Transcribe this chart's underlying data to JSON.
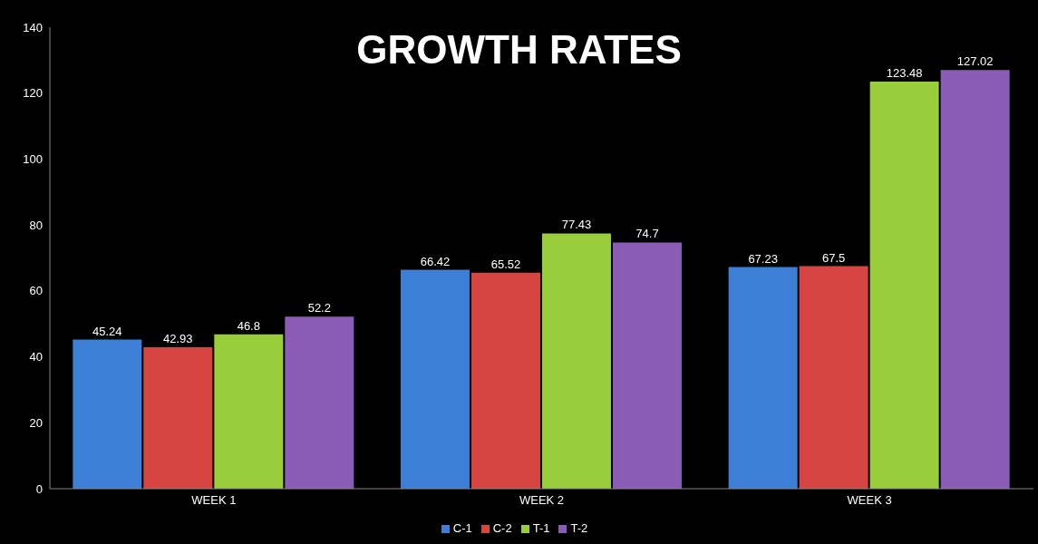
{
  "chart_data": {
    "type": "bar",
    "title": "GROWTH RATES",
    "categories": [
      "WEEK 1",
      "WEEK 2",
      "WEEK 3"
    ],
    "series": [
      {
        "name": "C-1",
        "color": "#3d7fd6",
        "values": [
          45.24,
          66.42,
          67.23
        ]
      },
      {
        "name": "C-2",
        "color": "#d64541",
        "values": [
          42.93,
          65.52,
          67.5
        ]
      },
      {
        "name": "T-1",
        "color": "#9acd3c",
        "values": [
          46.8,
          77.43,
          123.48
        ]
      },
      {
        "name": "T-2",
        "color": "#8a5cb5",
        "values": [
          52.2,
          74.7,
          127.02
        ]
      }
    ],
    "ylim": [
      0,
      140
    ],
    "yticks": [
      0,
      20,
      40,
      60,
      80,
      100,
      120,
      140
    ],
    "grid": false,
    "legend": "bottom",
    "data_labels": true
  }
}
